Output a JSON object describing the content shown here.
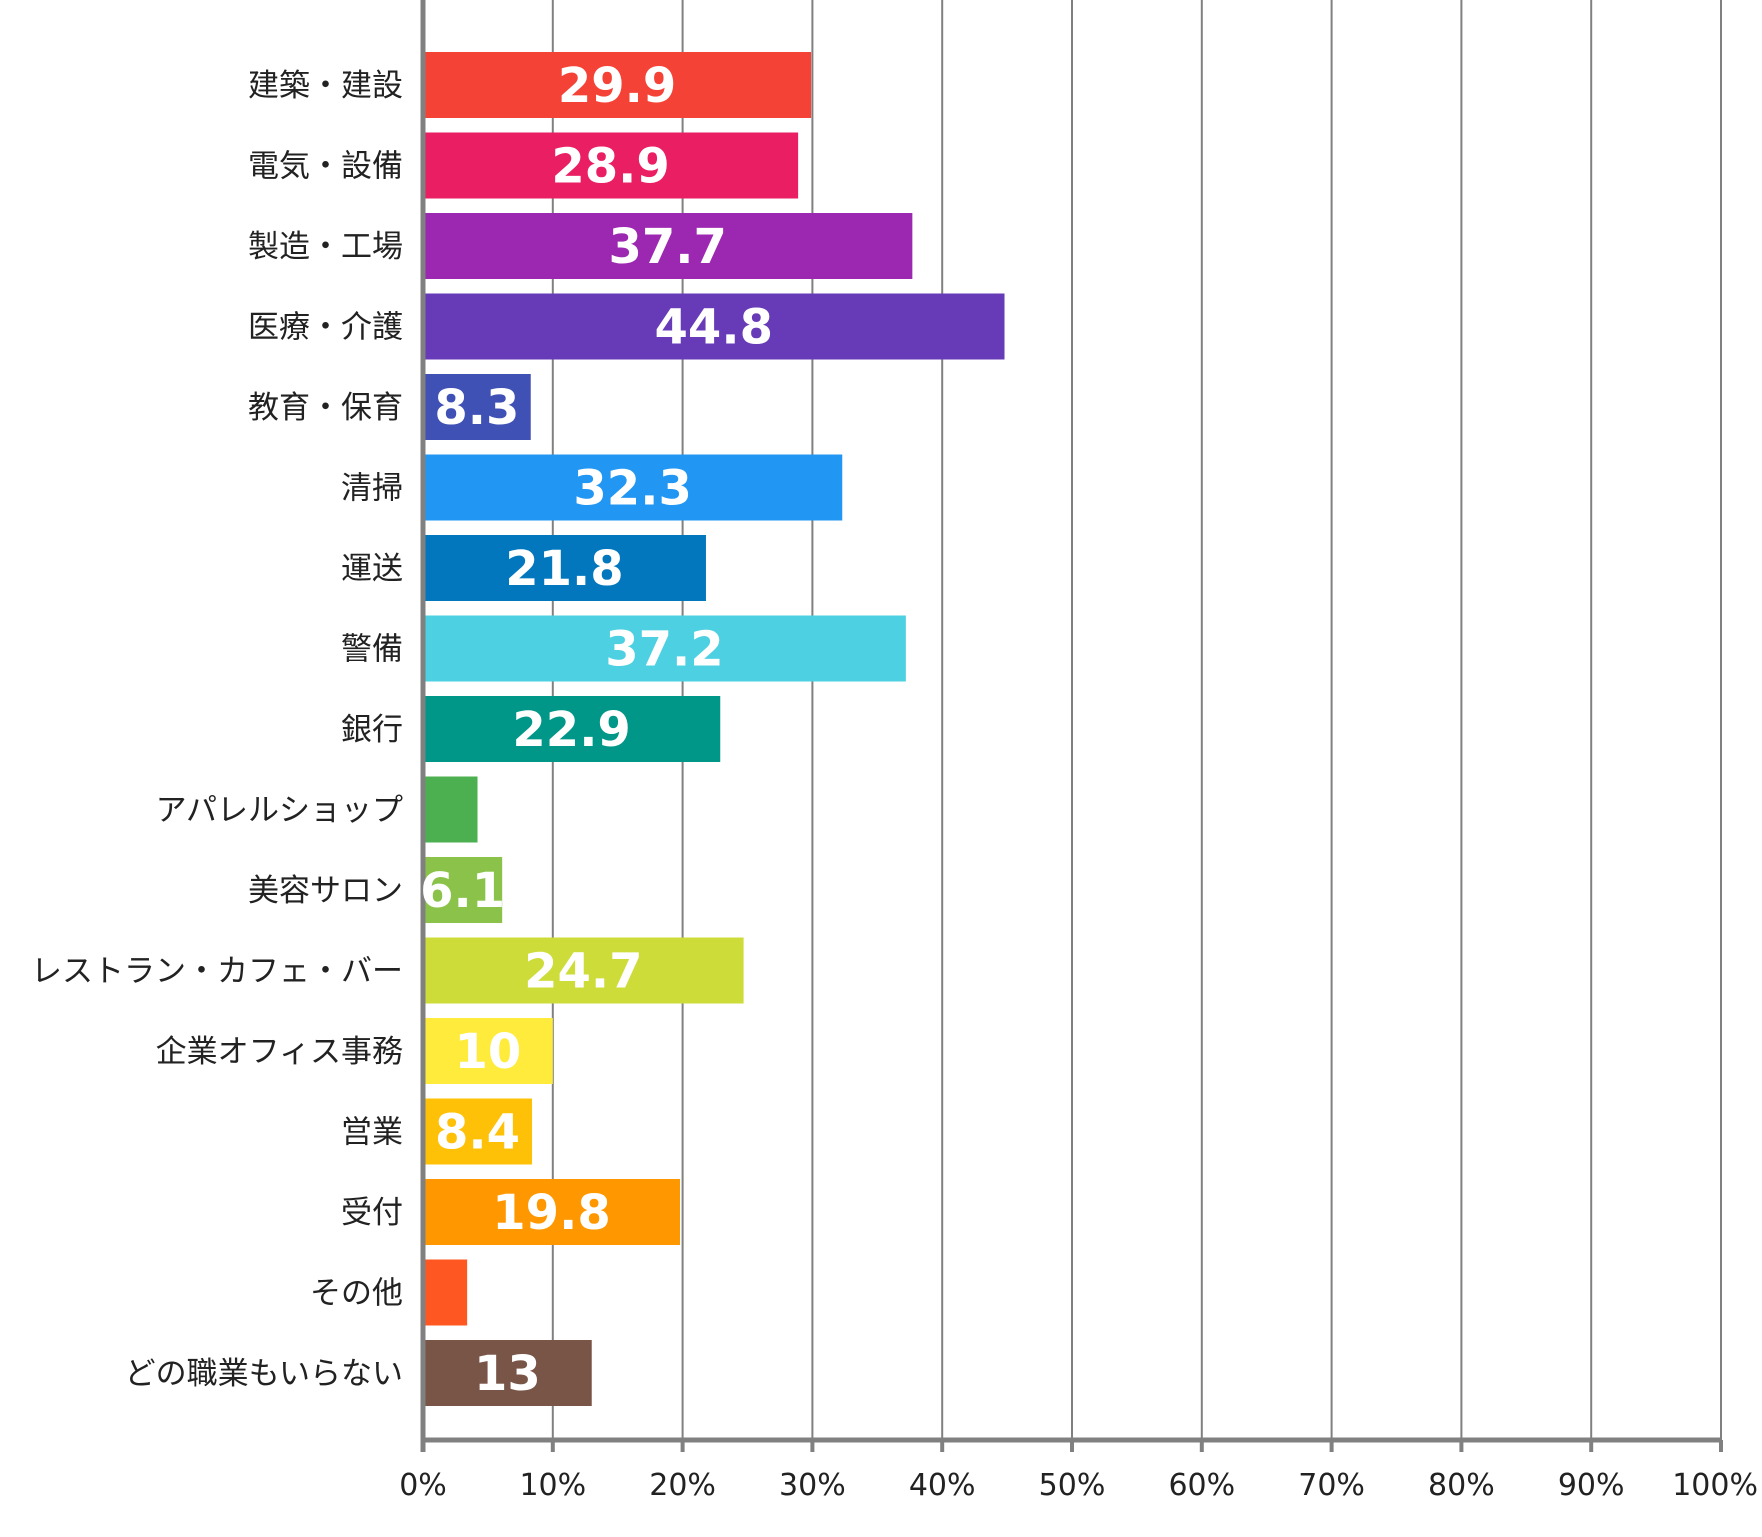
{
  "chart_data": {
    "type": "bar",
    "orientation": "horizontal",
    "categories": [
      "建築・建設",
      "電気・設備",
      "製造・工場",
      "医療・介護",
      "教育・保育",
      "清掃",
      "運送",
      "警備",
      "銀行",
      "アパレルショップ",
      "美容サロン",
      "レストラン・カフェ・バー",
      "企業オフィス事務",
      "営業",
      "受付",
      "その他",
      "どの職業もいらない"
    ],
    "values": [
      29.9,
      28.9,
      37.7,
      44.8,
      8.3,
      32.3,
      21.8,
      37.2,
      22.9,
      4.2,
      6.1,
      24.7,
      10,
      8.4,
      19.8,
      3.4,
      13
    ],
    "value_labels": [
      "29.9",
      "28.9",
      "37.7",
      "44.8",
      "8.3",
      "32.3",
      "21.8",
      "37.2",
      "22.9",
      "",
      "6.1",
      "24.7",
      "10",
      "8.4",
      "19.8",
      "",
      "13"
    ],
    "colors": [
      "#f44336",
      "#e91e63",
      "#9c27b0",
      "#673ab7",
      "#3f51b5",
      "#2196f3",
      "#0277bd",
      "#4dd0e1",
      "#009688",
      "#4caf50",
      "#8bc34a",
      "#cddc39",
      "#ffeb3b",
      "#ffc107",
      "#ff9800",
      "#ff5722",
      "#795548"
    ],
    "x_ticks": [
      "0%",
      "10%",
      "20%",
      "30%",
      "40%",
      "50%",
      "60%",
      "70%",
      "80%",
      "90%",
      "100%"
    ],
    "xlim": [
      0,
      100
    ],
    "grid": "vertical",
    "grid_color": "#808080",
    "axis_color": "#808080",
    "title": "",
    "xlabel": "",
    "ylabel": ""
  }
}
